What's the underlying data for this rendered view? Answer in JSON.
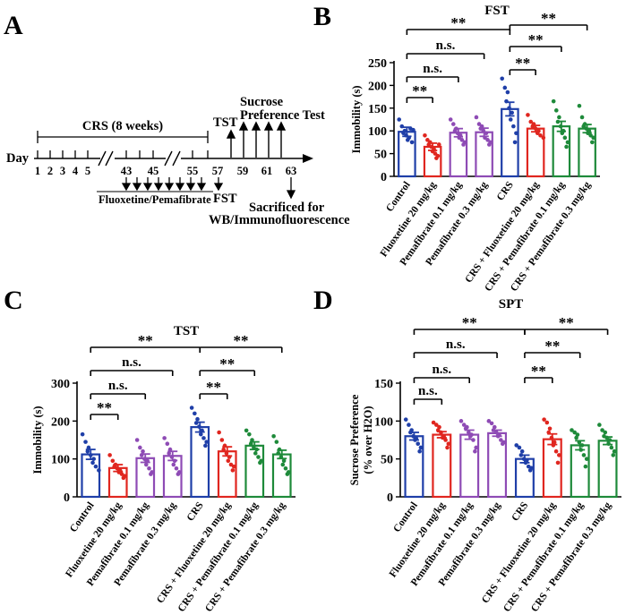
{
  "panels": {
    "A": {
      "letter": "A",
      "crs_label": "CRS (8 weeks)",
      "day_label": "Day",
      "days_early": [
        "1",
        "2",
        "3",
        "4",
        "5"
      ],
      "days_mid": [
        "43",
        "45"
      ],
      "days_late": [
        "55",
        "57",
        "59",
        "61",
        "63"
      ],
      "tst_label": "TST",
      "sucrose_label_1": "Sucrose",
      "sucrose_label_2": "Preference Test",
      "drug_label": "Fluoxetine/Pemafibrate",
      "fst_label": "FST",
      "sacrificed_label_1": "Sacrificed for",
      "sacrificed_label_2": "WB/Immunofluorescence"
    },
    "B": {
      "letter": "B"
    },
    "C": {
      "letter": "C"
    },
    "D": {
      "letter": "D"
    }
  },
  "chart_data": [
    {
      "id": "B",
      "type": "bar",
      "title": "FST",
      "ylabel": "Immobility (s)",
      "ylim": [
        0,
        250
      ],
      "yticks": [
        0,
        50,
        100,
        150,
        200,
        250
      ],
      "categories": [
        "Control",
        "Fluoxetine 20 mg/kg",
        "Pemafibrate 0.1 mg/kg",
        "Pemafibrate 0.3 mg/kg",
        "CRS",
        "CRS + Fluoxetine 20 mg/kg",
        "CRS + Pemafibrate 0.1 mg/kg",
        "CRS + Pemafibrate 0.3 mg/kg"
      ],
      "colors": [
        "#1f3fa8",
        "#e0261f",
        "#8e4bb5",
        "#8e4bb5",
        "#1f3fa8",
        "#e0261f",
        "#1e8a3a",
        "#1e8a3a"
      ],
      "values": [
        98,
        65,
        96,
        97,
        148,
        105,
        110,
        105
      ],
      "errors": [
        10,
        8,
        9,
        9,
        15,
        7,
        11,
        9
      ],
      "points": [
        [
          125,
          110,
          100,
          95,
          90,
          85,
          80,
          105,
          102,
          75
        ],
        [
          90,
          80,
          75,
          70,
          65,
          60,
          55,
          50,
          45,
          40,
          70
        ],
        [
          125,
          115,
          105,
          100,
          95,
          90,
          85,
          80,
          75,
          70
        ],
        [
          130,
          115,
          110,
          105,
          100,
          95,
          85,
          80,
          75,
          70
        ],
        [
          215,
          195,
          185,
          165,
          150,
          140,
          125,
          110,
          95,
          75
        ],
        [
          135,
          120,
          115,
          110,
          105,
          100,
          95,
          90,
          85
        ],
        [
          165,
          145,
          130,
          120,
          110,
          100,
          95,
          85,
          75,
          65
        ],
        [
          155,
          130,
          115,
          110,
          105,
          100,
          95,
          90,
          85,
          75
        ]
      ],
      "comparisons": [
        {
          "a": 0,
          "b": 4,
          "label": "**"
        },
        {
          "a": 4,
          "b": 7,
          "label": "**"
        },
        {
          "a": 0,
          "b": 3,
          "label": "n.s."
        },
        {
          "a": 4,
          "b": 6,
          "label": "**"
        },
        {
          "a": 0,
          "b": 2,
          "label": "n.s."
        },
        {
          "a": 4,
          "b": 5,
          "label": "**"
        },
        {
          "a": 0,
          "b": 1,
          "label": "**"
        }
      ]
    },
    {
      "id": "C",
      "type": "bar",
      "title": "TST",
      "ylabel": "Immobility (s)",
      "ylim": [
        0,
        300
      ],
      "yticks": [
        0,
        100,
        200,
        300
      ],
      "categories": [
        "Control",
        "Fluoxetine 20 mg/kg",
        "Pemafibrate 0.1 mg/kg",
        "Pemafibrate 0.3 mg/kg",
        "CRS",
        "CRS + Fluoxetine 20 mg/kg",
        "CRS + Pemafibrate 0.1 mg/kg",
        "CRS + Pemafibrate 0.3 mg/kg"
      ],
      "colors": [
        "#1f3fa8",
        "#e0261f",
        "#8e4bb5",
        "#8e4bb5",
        "#1f3fa8",
        "#e0261f",
        "#1e8a3a",
        "#1e8a3a"
      ],
      "values": [
        112,
        76,
        102,
        108,
        184,
        120,
        135,
        112
      ],
      "errors": [
        13,
        9,
        11,
        12,
        13,
        12,
        10,
        11
      ],
      "points": [
        [
          165,
          145,
          130,
          120,
          110,
          100,
          90,
          80,
          70
        ],
        [
          110,
          95,
          85,
          80,
          75,
          70,
          65,
          60,
          55,
          50
        ],
        [
          150,
          130,
          120,
          110,
          100,
          95,
          85,
          75,
          65,
          60
        ],
        [
          155,
          140,
          125,
          115,
          105,
          95,
          85,
          75,
          65,
          60
        ],
        [
          235,
          220,
          205,
          195,
          185,
          175,
          165,
          155,
          145,
          135
        ],
        [
          170,
          150,
          135,
          125,
          115,
          105,
          95,
          85,
          80,
          70
        ],
        [
          175,
          165,
          150,
          140,
          130,
          125,
          115,
          105,
          95,
          90
        ],
        [
          160,
          145,
          125,
          115,
          105,
          95,
          85,
          75,
          65,
          60
        ]
      ],
      "comparisons": [
        {
          "a": 0,
          "b": 4,
          "label": "**"
        },
        {
          "a": 4,
          "b": 7,
          "label": "**"
        },
        {
          "a": 0,
          "b": 3,
          "label": "n.s."
        },
        {
          "a": 4,
          "b": 6,
          "label": "**"
        },
        {
          "a": 0,
          "b": 2,
          "label": "n.s."
        },
        {
          "a": 4,
          "b": 5,
          "label": "**"
        },
        {
          "a": 0,
          "b": 1,
          "label": "**"
        }
      ]
    },
    {
      "id": "D",
      "type": "bar",
      "title": "SPT",
      "ylabel": "Sucrose Preference (% over H2O)",
      "ylabel_lines": [
        "Sucrose Preference",
        "(% over H2O)"
      ],
      "ylim": [
        0,
        150
      ],
      "yticks": [
        0,
        50,
        100,
        150
      ],
      "categories": [
        "Control",
        "Fluoxetine 20 mg/kg",
        "Pemafibrate 0.1 mg/kg",
        "Pemafibrate 0.3 mg/kg",
        "CRS",
        "CRS + Fluoxetine 20 mg/kg",
        "CRS + Pemafibrate 0.1 mg/kg",
        "CRS + Pemafibrate 0.3 mg/kg"
      ],
      "colors": [
        "#1f3fa8",
        "#e0261f",
        "#8e4bb5",
        "#8e4bb5",
        "#1f3fa8",
        "#e0261f",
        "#1e8a3a",
        "#1e8a3a"
      ],
      "values": [
        80,
        82,
        82,
        84,
        50,
        76,
        68,
        74
      ],
      "errors": [
        5,
        4,
        6,
        4,
        5,
        7,
        6,
        5
      ],
      "points": [
        [
          102,
          95,
          88,
          85,
          80,
          77,
          75,
          70,
          65,
          60
        ],
        [
          98,
          95,
          92,
          88,
          85,
          80,
          78,
          75,
          70,
          65
        ],
        [
          100,
          95,
          92,
          90,
          85,
          82,
          80,
          75,
          65,
          60
        ],
        [
          100,
          97,
          92,
          88,
          85,
          82,
          80,
          75,
          72,
          70
        ],
        [
          68,
          65,
          60,
          55,
          50,
          48,
          45,
          40,
          38,
          35
        ],
        [
          102,
          98,
          90,
          85,
          78,
          72,
          68,
          60,
          55,
          45
        ],
        [
          88,
          85,
          82,
          78,
          72,
          68,
          62,
          55,
          50,
          40
        ],
        [
          95,
          88,
          85,
          80,
          78,
          75,
          70,
          65,
          60,
          55
        ]
      ],
      "comparisons": [
        {
          "a": 0,
          "b": 4,
          "label": "**"
        },
        {
          "a": 4,
          "b": 7,
          "label": "**"
        },
        {
          "a": 0,
          "b": 3,
          "label": "n.s."
        },
        {
          "a": 4,
          "b": 6,
          "label": "**"
        },
        {
          "a": 0,
          "b": 2,
          "label": "n.s."
        },
        {
          "a": 4,
          "b": 5,
          "label": "**"
        },
        {
          "a": 0,
          "b": 1,
          "label": "n.s."
        }
      ]
    }
  ]
}
